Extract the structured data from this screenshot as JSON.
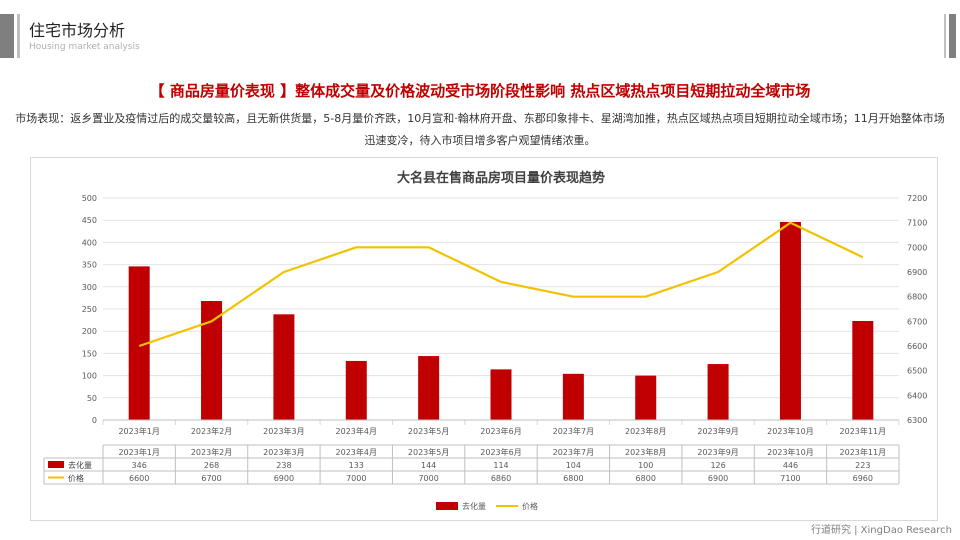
{
  "header": {
    "title": "住宅市场分析",
    "subtitle": "Housing market analysis"
  },
  "headline": "【 商品房量价表现 】整体成交量及价格波动受市场阶段性影响  热点区域热点项目短期拉动全域市场",
  "description": "市场表现：返乡置业及疫情过后的成交量较高，且无新供货量，5-8月量价齐跌，10月宣和·翰林府开盘、东郡印象排卡、星湖湾加推，热点区域热点项目短期拉动全域市场；11月开始整体市场迅速变冷，待入市项目增多客户观望情绪浓重。",
  "footer": "行道研究 | XingDao Research",
  "colors": {
    "bar": "#c00000",
    "line": "#f2c200",
    "accent": "#c00000"
  },
  "chart_data": {
    "type": "bar+line",
    "title": "大名县在售商品房项目量价表现趋势",
    "categories": [
      "2023年1月",
      "2023年2月",
      "2023年3月",
      "2023年4月",
      "2023年5月",
      "2023年6月",
      "2023年7月",
      "2023年8月",
      "2023年9月",
      "2023年10月",
      "2023年11月"
    ],
    "series": [
      {
        "name": "去化量",
        "type": "bar",
        "axis": "left",
        "values": [
          346,
          268,
          238,
          133,
          144,
          114,
          104,
          100,
          126,
          446,
          223
        ]
      },
      {
        "name": "价格",
        "type": "line",
        "axis": "right",
        "values": [
          6600,
          6700,
          6900,
          7000,
          7000,
          6860,
          6800,
          6800,
          6900,
          7100,
          6960
        ]
      }
    ],
    "y_left": {
      "min": 0,
      "max": 500,
      "step": 50
    },
    "y_right": {
      "min": 6300,
      "max": 7200,
      "step": 100
    },
    "grid": true,
    "legend": "bottom",
    "data_table": true
  }
}
